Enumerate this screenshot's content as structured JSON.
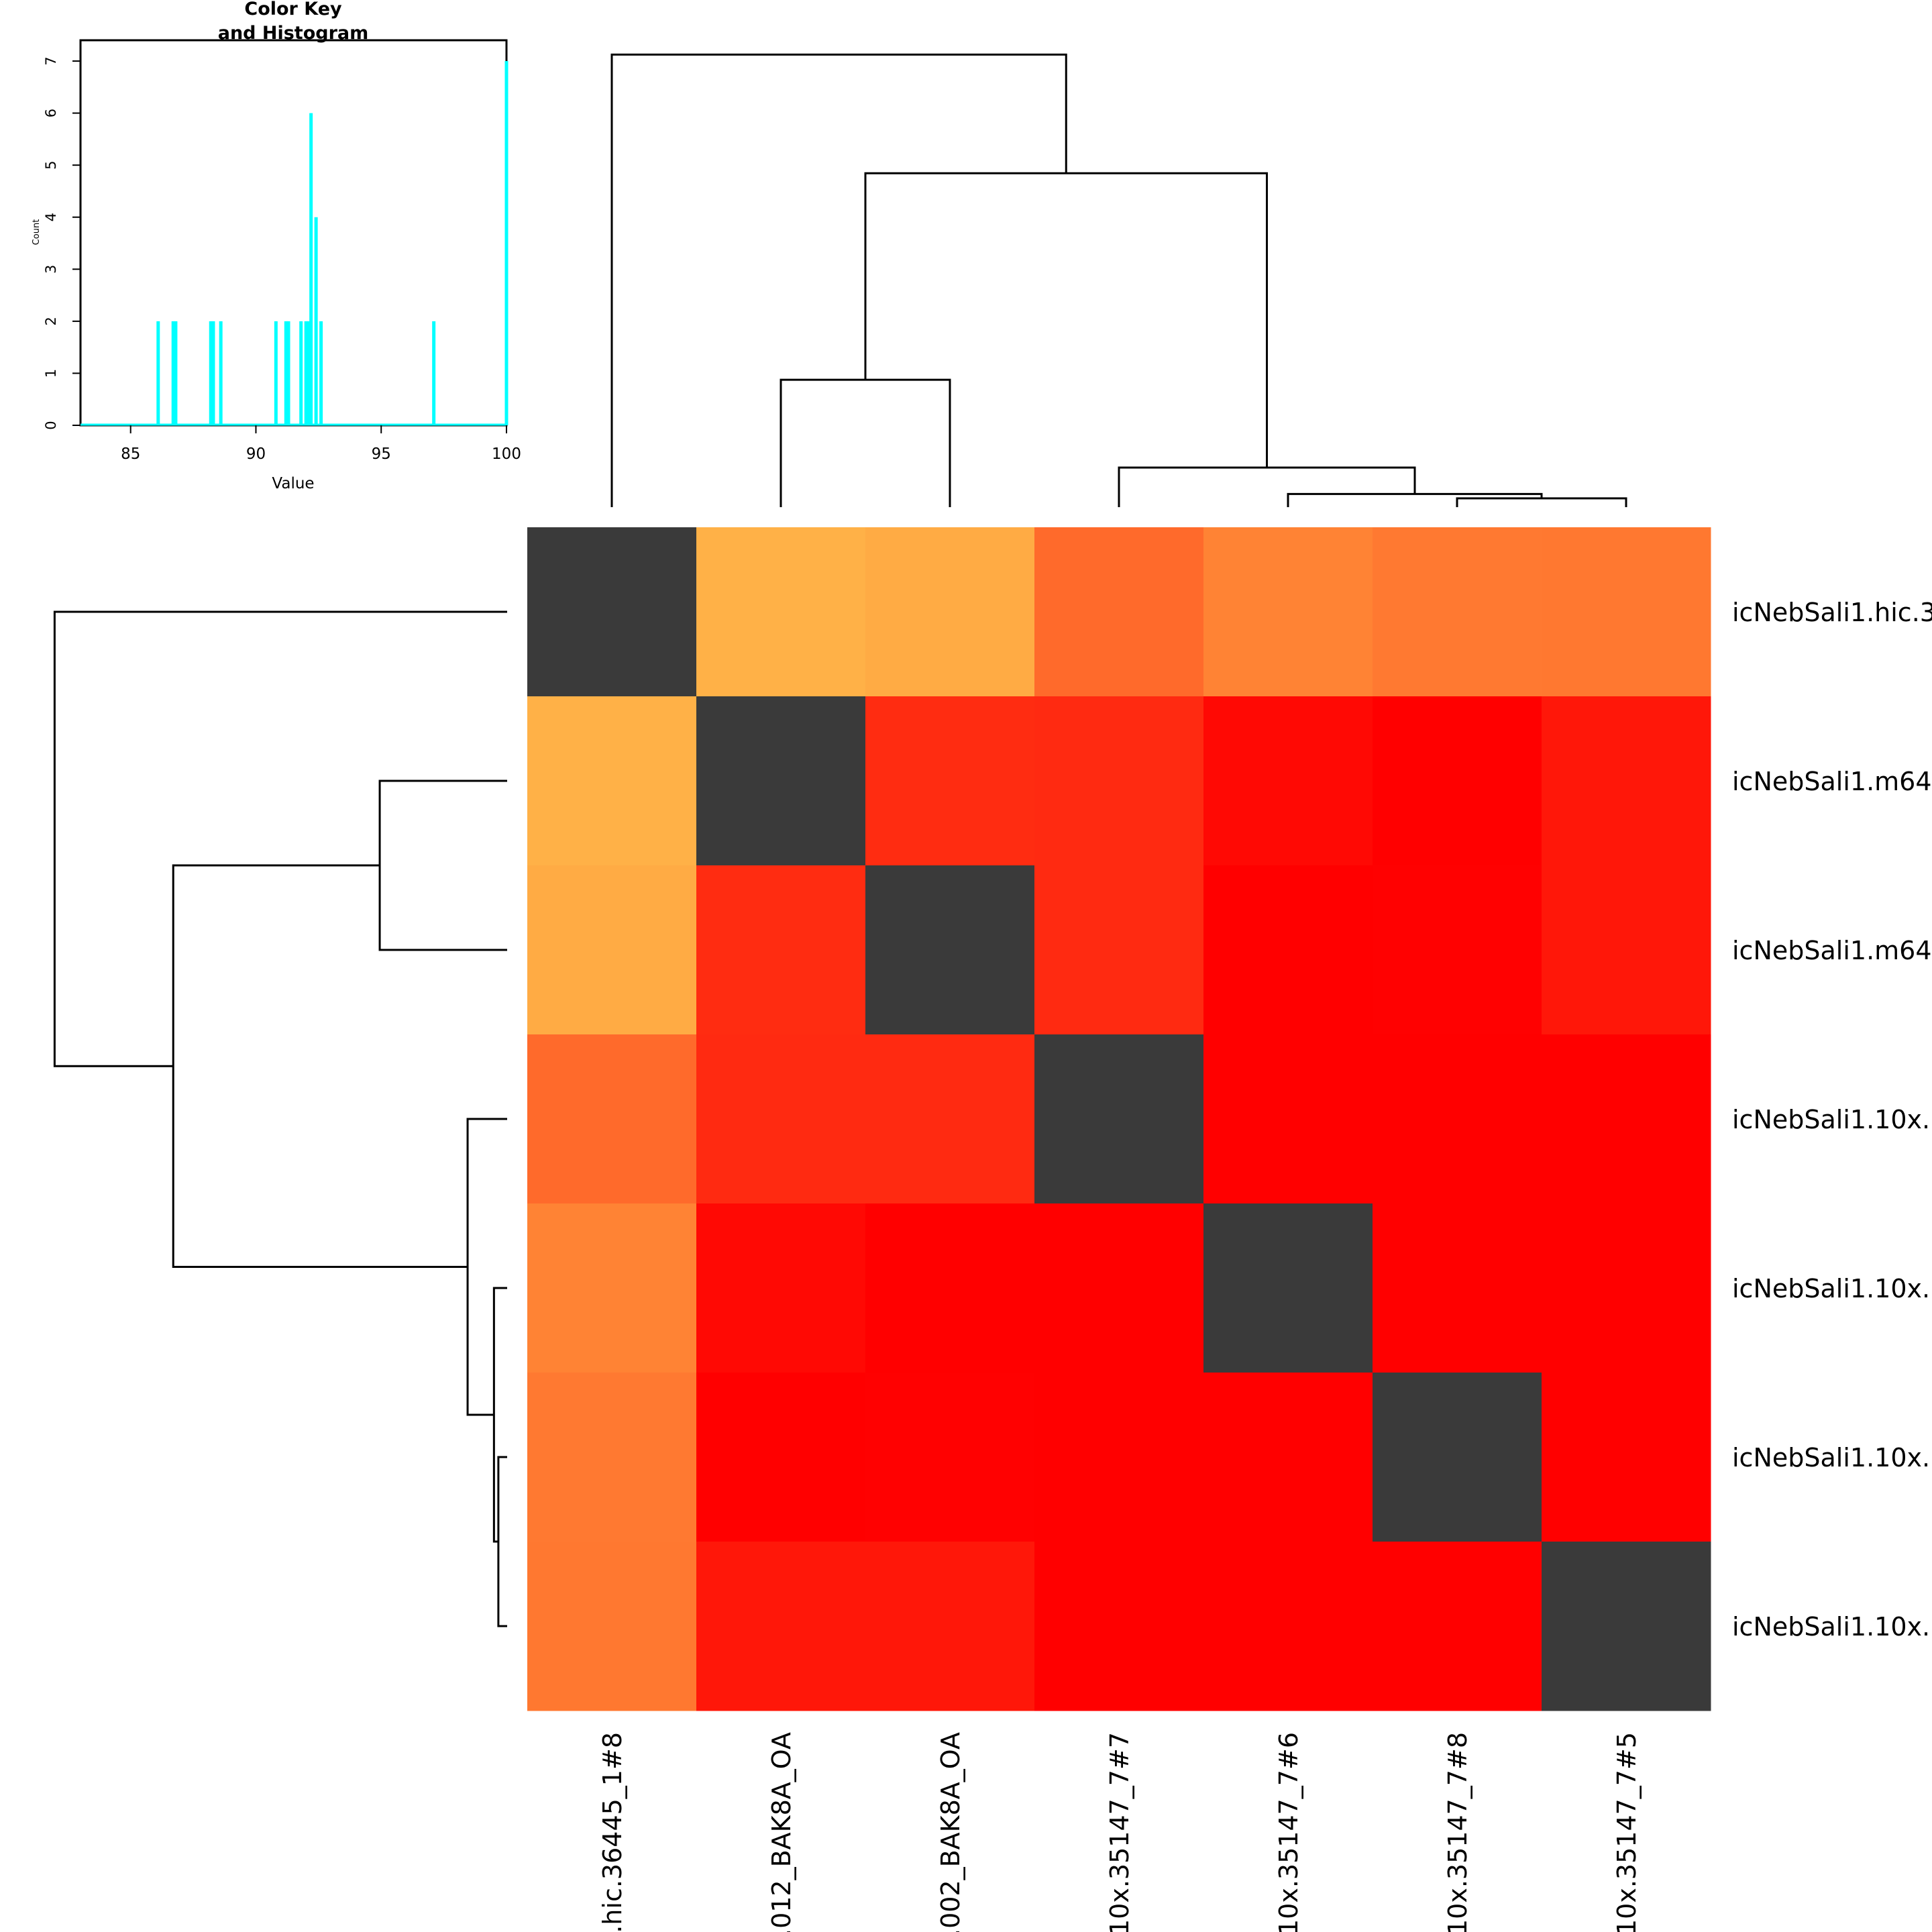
{
  "chart_data": [
    {
      "type": "heatmap",
      "title": "",
      "row_labels": [
        "icNebSali1.hic.3",
        "icNebSali1.m64",
        "icNebSali1.m64",
        "icNebSali1.10x.",
        "icNebSali1.10x.",
        "icNebSali1.10x.",
        "icNebSali1.10x."
      ],
      "col_labels": [
        ".hic.36445_1#8",
        ".012_BAK8A_OA",
        ".002_BAK8A_OA",
        "10x.35147_7#7",
        "10x.35147_7#6",
        "10x.35147_7#8",
        "10x.35147_7#5"
      ],
      "values": [
        [
          null,
          88.2,
          88.6,
          92.9,
          91.3,
          91.9,
          92.0
        ],
        [
          88.2,
          null,
          97.1,
          97.2,
          99.4,
          100.0,
          98.5
        ],
        [
          88.6,
          97.1,
          null,
          97.2,
          100.0,
          99.9,
          98.5
        ],
        [
          92.9,
          97.2,
          97.2,
          null,
          100.0,
          100.0,
          100.0
        ],
        [
          91.3,
          99.4,
          100.0,
          100.0,
          null,
          100.0,
          100.0
        ],
        [
          91.9,
          100.0,
          99.9,
          100.0,
          100.0,
          null,
          100.0
        ],
        [
          92.0,
          98.5,
          98.5,
          100.0,
          100.0,
          100.0,
          null
        ]
      ],
      "color_scale": {
        "low": "#ffff66",
        "high": "#ff0000",
        "missing": "#3a3a3a",
        "range": [
          83,
          100
        ]
      },
      "dendrogram": {
        "order": [
          0,
          1,
          2,
          3,
          4,
          5,
          6
        ],
        "merges": [
          {
            "a": 1,
            "b": 2,
            "height": 2.9
          },
          {
            "a": 5,
            "b": 6,
            "height": 0.2
          },
          {
            "a": 4,
            "b": "m2",
            "height": 0.3
          },
          {
            "a": 3,
            "b": "m3",
            "height": 0.9
          },
          {
            "a": "m1",
            "b": "m4",
            "height": 7.6
          },
          {
            "a": 0,
            "b": "m5",
            "height": 10.3
          }
        ],
        "max_height": 11.1
      }
    },
    {
      "type": "bar",
      "title": "Color Key\nand Histogram",
      "title_lines": [
        "Color Key",
        "and Histogram"
      ],
      "xlabel": "Value",
      "ylabel": "Count",
      "xlim": [
        83,
        100
      ],
      "ylim": [
        0,
        7.4
      ],
      "x_ticks": [
        85,
        90,
        95,
        100
      ],
      "y_ticks": [
        0,
        1,
        2,
        3,
        4,
        5,
        6,
        7
      ],
      "bar_color": "#00ffff",
      "x": [
        86.1,
        86.7,
        86.8,
        88.2,
        88.3,
        88.6,
        90.8,
        91.2,
        91.3,
        91.8,
        92.0,
        92.1,
        92.2,
        92.4,
        92.6,
        97.1,
        100.0
      ],
      "values": [
        2,
        2,
        2,
        2,
        2,
        2,
        2,
        2,
        2,
        2,
        2,
        2,
        6,
        4,
        2,
        2,
        7
      ]
    }
  ]
}
